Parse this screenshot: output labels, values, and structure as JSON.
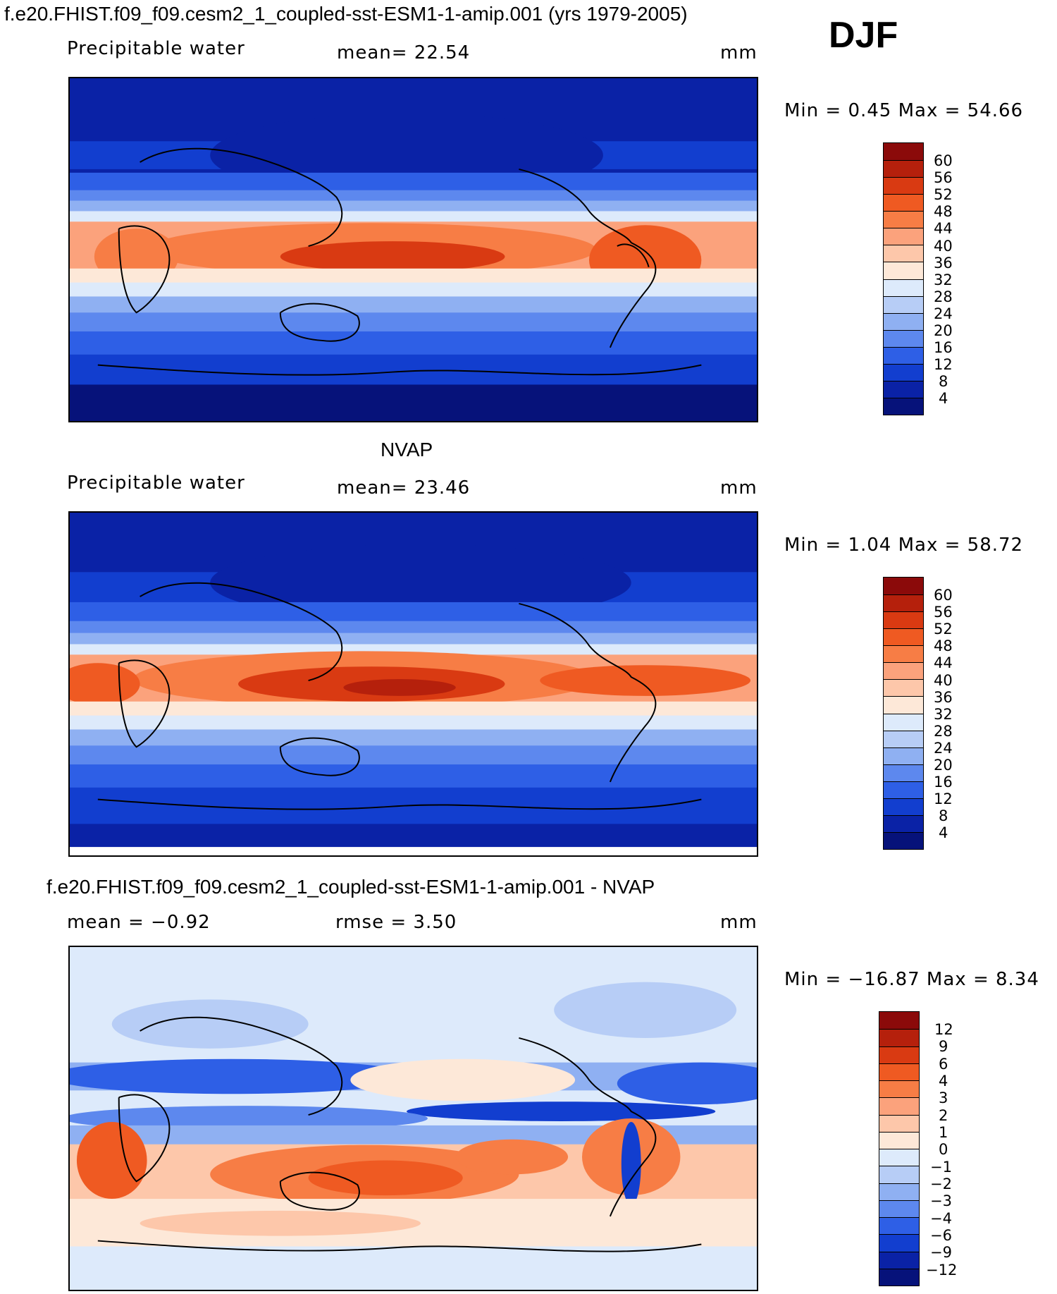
{
  "header": {
    "case_title": "f.e20.FHIST.f09_f09.cesm2_1_coupled-sst-ESM1-1-amip.001 (yrs 1979-2005)",
    "season": "DJF"
  },
  "panels": [
    {
      "id": "model",
      "title": "",
      "variable": "Precipitable water",
      "stat": "mean=   22.54",
      "units": "mm",
      "minmax": "Min =     0.45  Max =    54.66",
      "colorbar": {
        "labels": [
          "60",
          "56",
          "52",
          "48",
          "44",
          "40",
          "36",
          "32",
          "28",
          "24",
          "20",
          "16",
          "12",
          "8",
          "4"
        ],
        "colors": [
          "#8b0a0a",
          "#b5200c",
          "#d93a12",
          "#ef5a22",
          "#f77d45",
          "#fba27c",
          "#fdc7aa",
          "#fde8d8",
          "#ddeafb",
          "#b7cdf6",
          "#8fb0f2",
          "#5d88ee",
          "#2e5fe6",
          "#123ecf",
          "#0a22a6",
          "#06127a"
        ]
      }
    },
    {
      "id": "obs",
      "title": "NVAP",
      "variable": "Precipitable water",
      "stat": "mean=   23.46",
      "units": "mm",
      "minmax": "Min =     1.04  Max =    58.72",
      "colorbar": {
        "labels": [
          "60",
          "56",
          "52",
          "48",
          "44",
          "40",
          "36",
          "32",
          "28",
          "24",
          "20",
          "16",
          "12",
          "8",
          "4"
        ],
        "colors": [
          "#8b0a0a",
          "#b5200c",
          "#d93a12",
          "#ef5a22",
          "#f77d45",
          "#fba27c",
          "#fdc7aa",
          "#fde8d8",
          "#ddeafb",
          "#b7cdf6",
          "#8fb0f2",
          "#5d88ee",
          "#2e5fe6",
          "#123ecf",
          "#0a22a6",
          "#06127a"
        ]
      }
    },
    {
      "id": "diff",
      "title": "f.e20.FHIST.f09_f09.cesm2_1_coupled-sst-ESM1-1-amip.001 - NVAP",
      "variable": "mean =   −0.92",
      "stat": "rmse =    3.50",
      "units": "mm",
      "minmax": "Min = −16.87  Max =     8.34",
      "colorbar": {
        "labels": [
          "12",
          "9",
          "6",
          "4",
          "3",
          "2",
          "1",
          "0",
          "−1",
          "−2",
          "−3",
          "−4",
          "−6",
          "−9",
          "−12"
        ],
        "colors": [
          "#8b0a0a",
          "#b5200c",
          "#d93a12",
          "#ef5a22",
          "#f77d45",
          "#fba27c",
          "#fdc7aa",
          "#fde8d8",
          "#ddeafb",
          "#b7cdf6",
          "#8fb0f2",
          "#5d88ee",
          "#2e5fe6",
          "#123ecf",
          "#0a22a6",
          "#06127a"
        ]
      }
    }
  ]
}
